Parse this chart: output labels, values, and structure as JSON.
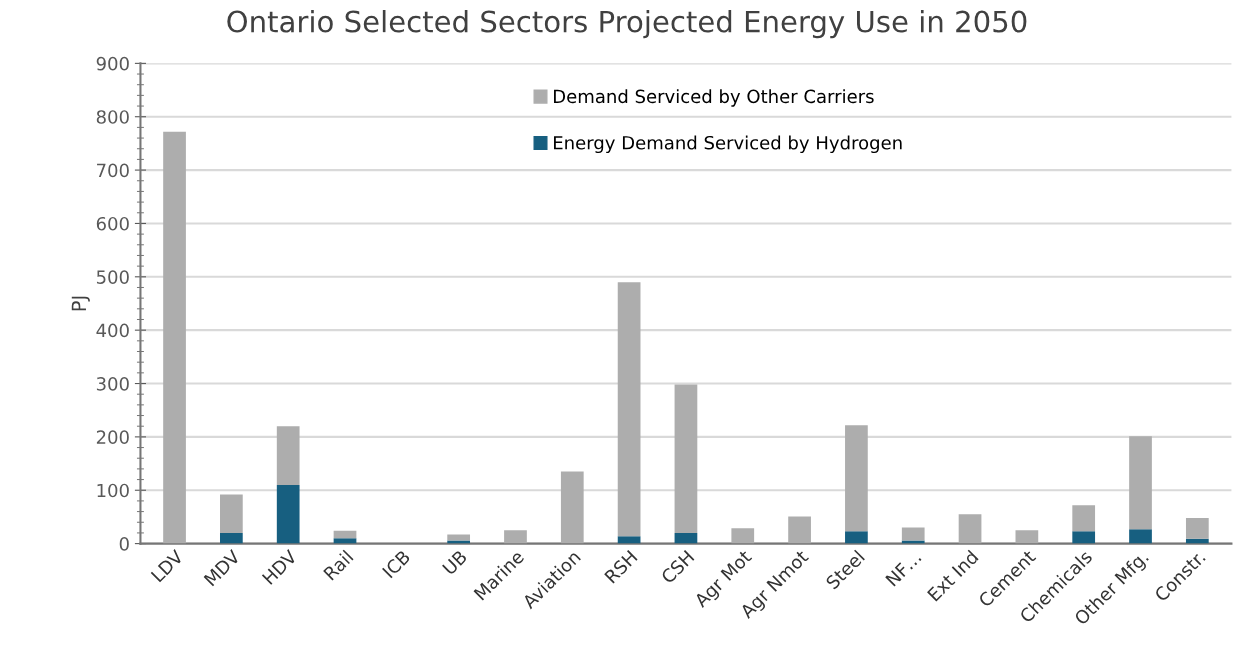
{
  "chart_data": {
    "type": "bar",
    "title": "Ontario Selected Sectors Projected Energy Use in 2050",
    "ylabel": "PJ",
    "categories": [
      "LDV",
      "MDV",
      "HDV",
      "Rail",
      "ICB",
      "UB",
      "Marine",
      "Aviation",
      "RSH",
      "CSH",
      "Agr Mot",
      "Agr Nmot",
      "Steel",
      "NF…",
      "Ext Ind",
      "Cement",
      "Chemicals",
      "Other Mfg.",
      "Constr."
    ],
    "stacked": true,
    "series": [
      {
        "name": "Energy Demand Serviced by Hydrogen",
        "color": "#175f80",
        "values": [
          0,
          20,
          110,
          10,
          0,
          6,
          0,
          0,
          14,
          20,
          0,
          0,
          23,
          6,
          0,
          0,
          23,
          27,
          9
        ]
      },
      {
        "name": "Demand Serviced by Other Carriers",
        "color": "#adadad",
        "values": [
          772,
          72,
          110,
          14,
          0,
          11,
          25,
          135,
          476,
          278,
          29,
          51,
          199,
          24,
          55,
          25,
          49,
          174,
          39
        ]
      }
    ],
    "ylim": [
      0,
      900
    ],
    "yticks": [
      0,
      100,
      200,
      300,
      400,
      500,
      600,
      700,
      800,
      900
    ],
    "grid": "y",
    "legend": "top"
  }
}
